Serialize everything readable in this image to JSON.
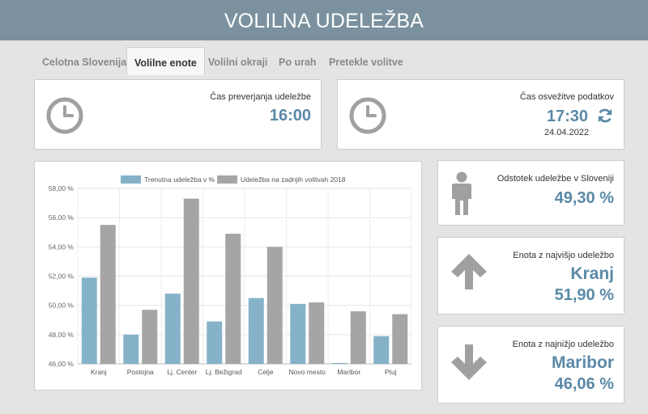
{
  "header": {
    "title": "VOLILNA UDELEŽBA"
  },
  "tabs": [
    {
      "label": "Celotna Slovenija",
      "active": false
    },
    {
      "label": "Volilne enote",
      "active": true
    },
    {
      "label": "Volilni okraji",
      "active": false
    },
    {
      "label": "Po urah",
      "active": false
    },
    {
      "label": "Pretekle volitve",
      "active": false
    }
  ],
  "check_time": {
    "label": "Čas preverjanja udeležbe",
    "value": "16:00",
    "icon": "clock-icon"
  },
  "refresh_time": {
    "label": "Čas osvežitve podatkov",
    "value": "17:30",
    "date": "24.04.2022",
    "icon": "clock-icon",
    "action_icon": "refresh-icon"
  },
  "stats": [
    {
      "label": "Odstotek udeležbe v Sloveniji",
      "enota": "",
      "value": "49,30 %",
      "icon": "person-icon"
    },
    {
      "label": "Enota z najvišjo udeležbo",
      "enota": "Kranj",
      "value": "51,90 %",
      "icon": "arrow-up-icon"
    },
    {
      "label": "Enota z najnižjo udeležbo",
      "enota": "Maribor",
      "value": "46,06 %",
      "icon": "arrow-down-icon"
    }
  ],
  "colors": {
    "header": "#7b919f",
    "accent": "#5a8aa7",
    "bar_current": "#85b2c9",
    "bar_2018": "#a5a5a5",
    "icon_gray": "#a0a0a0"
  },
  "chart_data": {
    "type": "bar",
    "categories": [
      "Kranj",
      "Postojna",
      "Lj. Center",
      "Lj. Bežigrad",
      "Celje",
      "Novo mesto",
      "Maribor",
      "Ptuj"
    ],
    "series": [
      {
        "name": "Trenutna udeležba v %",
        "values": [
          51.9,
          48.0,
          50.8,
          48.9,
          50.5,
          50.1,
          46.06,
          47.9
        ]
      },
      {
        "name": "Udeležba na zadnjih volitvah 2018",
        "values": [
          55.5,
          49.7,
          57.3,
          54.9,
          54.0,
          50.2,
          49.6,
          49.4
        ]
      }
    ],
    "yticks": [
      "46,00 %",
      "48,00 %",
      "50,00 %",
      "52,00 %",
      "54,00 %",
      "56,00 %",
      "58,00 %"
    ],
    "ylim": [
      46,
      58
    ],
    "grid": true,
    "legend": "top"
  }
}
